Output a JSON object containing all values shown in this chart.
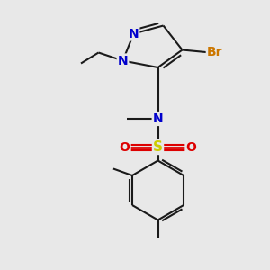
{
  "background_color": "#e8e8e8",
  "bond_color": "#1a1a1a",
  "bond_lw": 1.5,
  "atom_colors": {
    "N": "#0000cc",
    "Br": "#cc7700",
    "S": "#cccc00",
    "O": "#dd0000",
    "C": "#1a1a1a"
  },
  "figsize": [
    3.0,
    3.0
  ],
  "dpi": 100,
  "xlim": [
    -1,
    9
  ],
  "ylim": [
    -0.5,
    9.5
  ]
}
